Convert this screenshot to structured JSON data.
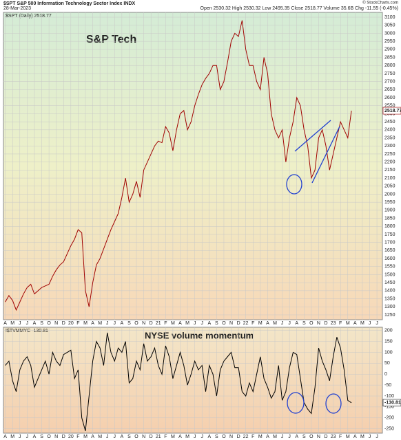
{
  "chart_data": [
    {
      "type": "line",
      "title": "S&P Tech",
      "header_left": "$SPT S&P 500 Information Technology Sector Index INDX",
      "header_date": "28-Mar-2023",
      "header_right": "Open 2530.32 High 2530.32 Low 2495.35 Close 2518.77 Volume 35.6B Chg -11.55 (-0.45%)",
      "credit": "© StockCharts.com",
      "legend": "$SPT (Daily) 2518.77",
      "categories": [
        "A",
        null,
        "M",
        null,
        "J",
        null,
        "J",
        null,
        "A",
        null,
        "S",
        null,
        "O",
        null,
        "N",
        null,
        "D",
        null,
        "20",
        null,
        "F",
        null,
        "M",
        null,
        "A",
        null,
        "M",
        null,
        "J",
        null,
        "J",
        null,
        "A",
        null,
        "S",
        null,
        "O",
        null,
        "N",
        null,
        "D",
        null,
        "21",
        null,
        "F",
        null,
        "M",
        null,
        "A",
        null,
        "M",
        null,
        "J",
        null,
        "J",
        null,
        "A",
        null,
        "S",
        null,
        "O",
        null,
        "N",
        null,
        "D",
        null,
        "22",
        null,
        "F",
        null,
        "M",
        null,
        "A",
        null,
        "M",
        null,
        "J",
        null,
        "J",
        null,
        "A",
        null,
        "S",
        null,
        "O",
        null,
        "N",
        null,
        "D",
        null,
        "23",
        null,
        "F",
        null,
        "M",
        null,
        "A",
        null,
        "M",
        null,
        "J",
        null,
        "J",
        null
      ],
      "series": [
        {
          "name": "$SPT",
          "color": "#a00000",
          "values": [
            1330,
            1370,
            1340,
            1280,
            1330,
            1380,
            1420,
            1440,
            1380,
            1400,
            1420,
            1430,
            1440,
            1490,
            1530,
            1560,
            1580,
            1630,
            1680,
            1720,
            1780,
            1760,
            1400,
            1300,
            1450,
            1560,
            1600,
            1660,
            1720,
            1780,
            1830,
            1880,
            1980,
            2100,
            1950,
            2000,
            2080,
            1980,
            2150,
            2200,
            2250,
            2300,
            2330,
            2320,
            2420,
            2380,
            2270,
            2400,
            2500,
            2520,
            2400,
            2450,
            2550,
            2620,
            2680,
            2720,
            2750,
            2800,
            2800,
            2650,
            2700,
            2820,
            2950,
            3000,
            2980,
            3080,
            2900,
            2800,
            2800,
            2700,
            2650,
            2850,
            2750,
            2500,
            2400,
            2350,
            2400,
            2200,
            2350,
            2450,
            2600,
            2550,
            2400,
            2300,
            2100,
            2150,
            2350,
            2400,
            2300,
            2150,
            2250,
            2350,
            2450,
            2400,
            2350,
            2518.77,
            null,
            null,
            null,
            null,
            null,
            null,
            null,
            null
          ]
        }
      ],
      "ylim": [
        1220,
        3130
      ],
      "yticks": [
        1250,
        1300,
        1350,
        1400,
        1450,
        1500,
        1550,
        1600,
        1650,
        1700,
        1750,
        1800,
        1850,
        1900,
        1950,
        2000,
        2050,
        2100,
        2150,
        2200,
        2250,
        2300,
        2350,
        2400,
        2450,
        2500,
        2550,
        2600,
        2650,
        2700,
        2750,
        2800,
        2850,
        2900,
        2950,
        3000,
        3050,
        3100
      ],
      "grid": true
    },
    {
      "type": "line",
      "title": "NYSE volume momentum",
      "legend": "!$TVMMYC -130.81",
      "categories": [
        "A",
        null,
        "M",
        null,
        "J",
        null,
        "J",
        null,
        "A",
        null,
        "S",
        null,
        "O",
        null,
        "N",
        null,
        "D",
        null,
        "20",
        null,
        "F",
        null,
        "M",
        null,
        "A",
        null,
        "M",
        null,
        "J",
        null,
        "J",
        null,
        "A",
        null,
        "S",
        null,
        "O",
        null,
        "N",
        null,
        "D",
        null,
        "21",
        null,
        "F",
        null,
        "M",
        null,
        "A",
        null,
        "M",
        null,
        "J",
        null,
        "J",
        null,
        "A",
        null,
        "S",
        null,
        "O",
        null,
        "N",
        null,
        "D",
        null,
        "22",
        null,
        "F",
        null,
        "M",
        null,
        "A",
        null,
        "M",
        null,
        "J",
        null,
        "J",
        null,
        "A",
        null,
        "S",
        null,
        "O",
        null,
        "N",
        null,
        "D",
        null,
        "23",
        null,
        "F",
        null,
        "M",
        null,
        "A",
        null,
        "M",
        null,
        "J",
        null,
        "J",
        null
      ],
      "series": [
        {
          "name": "!$TVMMYC",
          "color": "#000000",
          "values": [
            40,
            60,
            -30,
            -80,
            20,
            60,
            80,
            40,
            -60,
            -20,
            20,
            60,
            0,
            100,
            60,
            40,
            90,
            100,
            110,
            -20,
            20,
            -200,
            -260,
            -100,
            60,
            150,
            120,
            40,
            190,
            100,
            60,
            120,
            100,
            150,
            -40,
            -20,
            60,
            20,
            140,
            60,
            80,
            120,
            40,
            0,
            130,
            80,
            -20,
            40,
            100,
            40,
            -50,
            0,
            60,
            20,
            40,
            -80,
            40,
            0,
            -100,
            20,
            60,
            80,
            100,
            30,
            30,
            -80,
            -100,
            -40,
            -80,
            0,
            80,
            -20,
            -60,
            -110,
            -80,
            40,
            -120,
            -80,
            30,
            100,
            90,
            -20,
            -130,
            -160,
            -180,
            -60,
            120,
            60,
            20,
            -30,
            80,
            170,
            120,
            20,
            -120,
            -130.81,
            null,
            null,
            null,
            null,
            null,
            null,
            null,
            null
          ]
        }
      ],
      "ylim": [
        -270,
        215
      ],
      "yticks": [
        200,
        150,
        100,
        50,
        0,
        -50,
        -100,
        -150,
        -200,
        -250
      ],
      "grid": true
    }
  ]
}
